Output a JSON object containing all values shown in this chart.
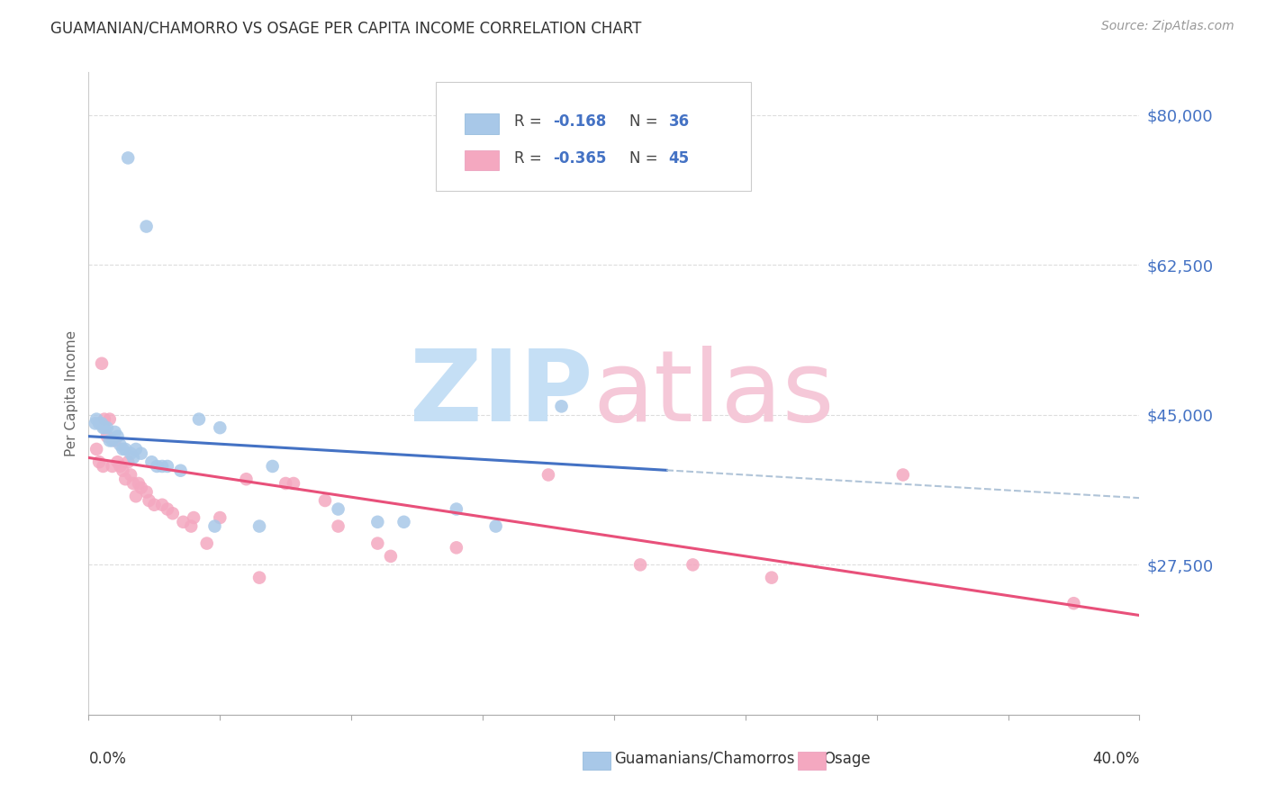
{
  "title": "GUAMANIAN/CHAMORRO VS OSAGE PER CAPITA INCOME CORRELATION CHART",
  "source": "Source: ZipAtlas.com",
  "ylabel": "Per Capita Income",
  "yticks": [
    0,
    27500,
    45000,
    62500,
    80000
  ],
  "ytick_labels": [
    "",
    "$27,500",
    "$45,000",
    "$62,500",
    "$80,000"
  ],
  "xlim": [
    0,
    40
  ],
  "ylim": [
    10000,
    85000
  ],
  "legend1_R": "-0.168",
  "legend1_N": "36",
  "legend2_R": "-0.365",
  "legend2_N": "45",
  "blue_color": "#a8c8e8",
  "pink_color": "#f4a8c0",
  "trend_blue": "#4472c4",
  "trend_pink": "#e8507a",
  "trend_dashed": "#b0c4d8",
  "blue_scatter_x": [
    1.5,
    2.2,
    0.3,
    0.5,
    0.7,
    0.8,
    1.0,
    1.1,
    1.2,
    1.3,
    1.4,
    1.6,
    1.8,
    2.0,
    2.4,
    2.8,
    3.0,
    3.5,
    4.2,
    5.0,
    7.0,
    9.5,
    11.0,
    14.0,
    18.0,
    0.4,
    0.6,
    0.9,
    1.7,
    2.6,
    4.8,
    6.5,
    12.0,
    15.5,
    0.25,
    0.55
  ],
  "blue_scatter_y": [
    75000,
    67000,
    44500,
    44000,
    43500,
    42000,
    43000,
    42500,
    41500,
    41000,
    41000,
    40500,
    41000,
    40500,
    39500,
    39000,
    39000,
    38500,
    44500,
    43500,
    39000,
    34000,
    32500,
    34000,
    46000,
    44000,
    43500,
    42000,
    40000,
    39000,
    32000,
    32000,
    32500,
    32000,
    44000,
    43500
  ],
  "pink_scatter_x": [
    0.3,
    0.4,
    0.5,
    0.6,
    0.7,
    0.8,
    0.9,
    1.0,
    1.1,
    1.2,
    1.3,
    1.4,
    1.5,
    1.6,
    1.7,
    1.8,
    2.0,
    2.2,
    2.5,
    2.8,
    3.0,
    3.2,
    3.6,
    4.0,
    4.5,
    5.0,
    6.0,
    7.5,
    9.5,
    11.5,
    14.0,
    17.5,
    21.0,
    23.0,
    26.0,
    31.0,
    37.5,
    0.55,
    1.9,
    2.3,
    3.9,
    6.5,
    7.8,
    9.0,
    11.0
  ],
  "pink_scatter_y": [
    41000,
    39500,
    51000,
    44500,
    42500,
    44500,
    39000,
    42000,
    39500,
    39000,
    38500,
    37500,
    39500,
    38000,
    37000,
    35500,
    36500,
    36000,
    34500,
    34500,
    34000,
    33500,
    32500,
    33000,
    30000,
    33000,
    37500,
    37000,
    32000,
    28500,
    29500,
    38000,
    27500,
    27500,
    26000,
    38000,
    23000,
    39000,
    37000,
    35000,
    32000,
    26000,
    37000,
    35000,
    30000
  ],
  "grid_color": "#dddddd",
  "bg_color": "#ffffff",
  "legend_text_color": "#4472c4",
  "legend_label_color": "#333333"
}
